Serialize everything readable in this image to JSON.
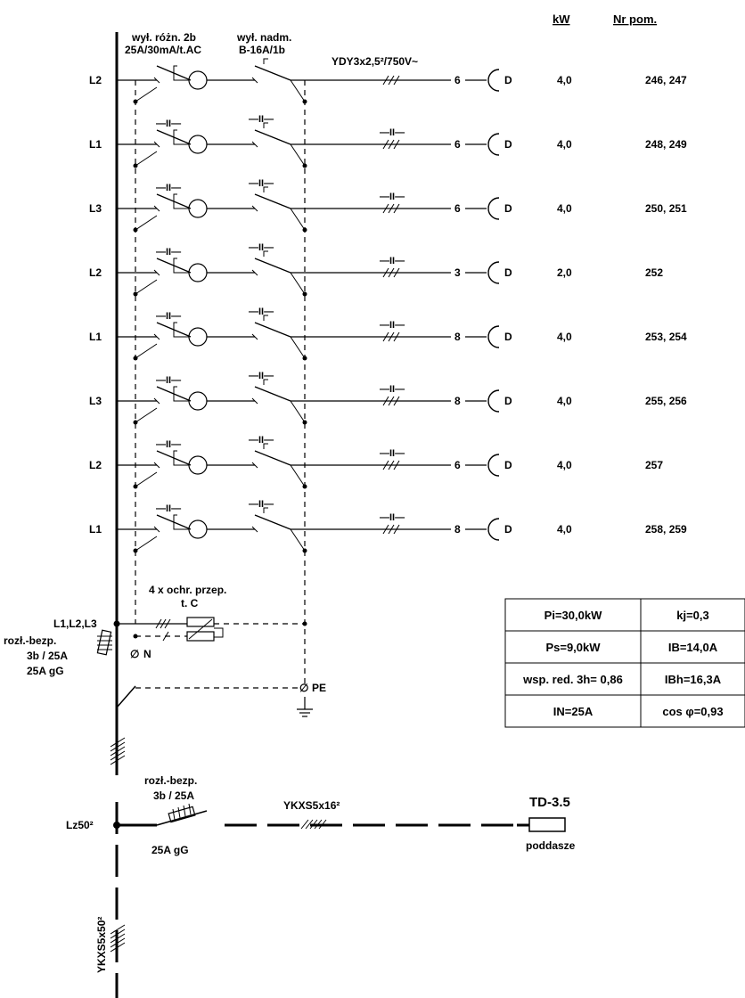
{
  "header": {
    "kw": "kW",
    "room_no": "Nr pom."
  },
  "top_labels": {
    "rcd": "wył. różn. 2b",
    "rcd_spec": "25A/30mA/t.AC",
    "mcb": "wył. nadm.",
    "mcb_spec": "B-16A/1b",
    "cable": "YDY3x2,5²/750V~"
  },
  "symbols": {
    "same": "—II—",
    "small_ts": "ts",
    "socket": "D",
    "neutral": "N",
    "pe": "PE"
  },
  "circuits": [
    {
      "phase": "L2",
      "count": "6",
      "kw": "4,0",
      "rooms": "246, 247"
    },
    {
      "phase": "L1",
      "count": "6",
      "kw": "4,0",
      "rooms": "248, 249"
    },
    {
      "phase": "L3",
      "count": "6",
      "kw": "4,0",
      "rooms": "250, 251"
    },
    {
      "phase": "L2",
      "count": "3",
      "kw": "2,0",
      "rooms": "252"
    },
    {
      "phase": "L1",
      "count": "8",
      "kw": "4,0",
      "rooms": "253, 254"
    },
    {
      "phase": "L3",
      "count": "8",
      "kw": "4,0",
      "rooms": "255, 256"
    },
    {
      "phase": "L2",
      "count": "6",
      "kw": "4,0",
      "rooms": "257"
    },
    {
      "phase": "L1",
      "count": "8",
      "kw": "4,0",
      "rooms": "258, 259"
    }
  ],
  "surge": {
    "label": "4 x ochr. przep.",
    "class": "t. C",
    "phases": "L1,L2,L3"
  },
  "main_switch": {
    "label1": "rozł.-bezp.",
    "label2": "3b / 25A",
    "label3": "25A gG"
  },
  "summary_table": [
    [
      "Pi=30,0kW",
      "kj=0,3"
    ],
    [
      "Ps=9,0kW",
      "IB=14,0A"
    ],
    [
      "wsp. red. 3h= 0,86",
      "IBh=16,3A"
    ],
    [
      "IN=25A",
      "cos φ=0,93"
    ]
  ],
  "feeder": {
    "source": "Lz50²",
    "switch_label1": "rozł.-bezp.",
    "switch_label2": "3b / 25A",
    "fuse": "25A gG",
    "cable": "YKXS5x16²",
    "target": "TD-3.5",
    "target_location": "poddasze",
    "riser_cable": "YKXS5x50²"
  }
}
